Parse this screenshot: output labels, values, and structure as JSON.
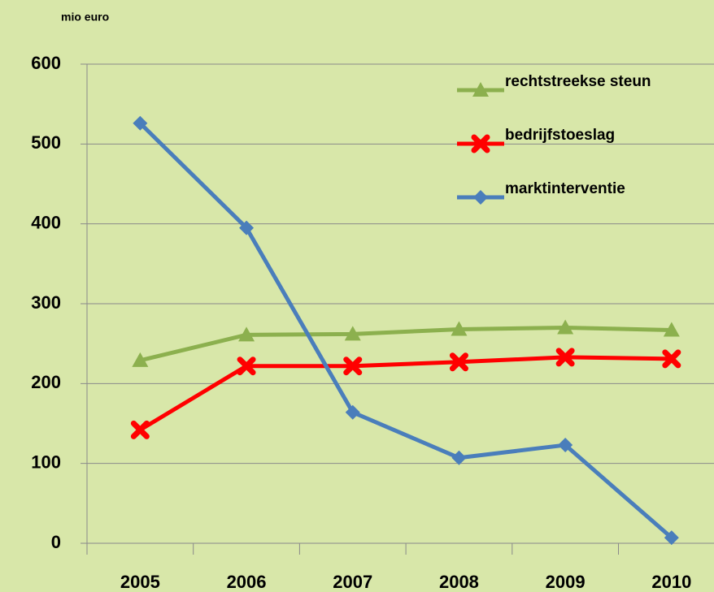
{
  "chart_data": {
    "type": "line",
    "y_axis_label": "mio euro",
    "categories": [
      "2005",
      "2006",
      "2007",
      "2008",
      "2009",
      "2010"
    ],
    "series": [
      {
        "name": "rechtstreekse steun",
        "color": "#8cb04e",
        "marker": "triangle",
        "values": [
          229,
          261,
          262,
          268,
          270,
          267
        ]
      },
      {
        "name": "bedrijfstoeslag",
        "color": "#ff0000",
        "marker": "x",
        "values": [
          142,
          222,
          222,
          227,
          233,
          231
        ]
      },
      {
        "name": "marktinterventie",
        "color": "#4a7ebb",
        "marker": "diamond",
        "values": [
          526,
          395,
          164,
          107,
          123,
          7
        ]
      }
    ],
    "ylim": [
      0,
      600
    ],
    "yticks": [
      0,
      100,
      200,
      300,
      400,
      500,
      600
    ],
    "grid": true,
    "legend": "top-right"
  }
}
